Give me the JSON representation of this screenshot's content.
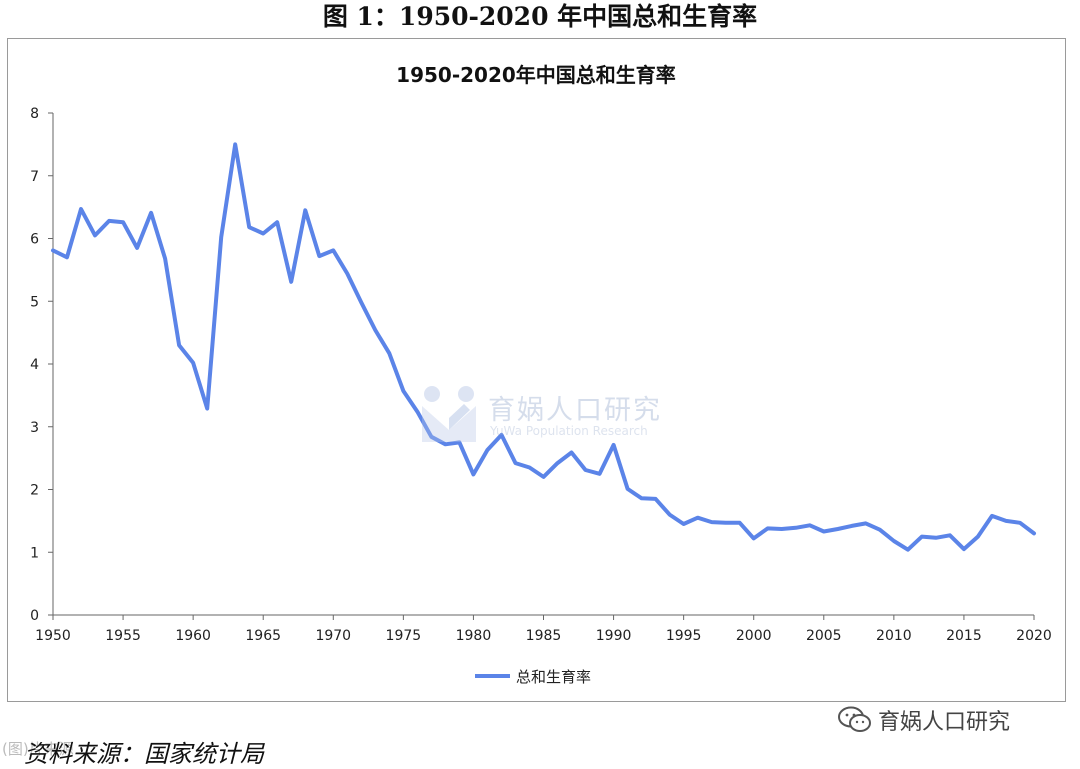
{
  "figure": {
    "caption": "图 1：1950-2020 年中国总和生育率"
  },
  "source_text": "资料来源：国家统计局",
  "source_watermark": "(图)片来源",
  "wechat_account": {
    "icon": "wechat-icon",
    "label": "育娲人口研究"
  },
  "watermark": {
    "logo": "yuwa-logo-icon",
    "title": "育娲人口研究",
    "subtitle": "YuWa Population Research"
  },
  "chart_data": {
    "type": "line",
    "title": "1950-2020年中国总和生育率",
    "xlabel": "",
    "ylabel": "",
    "x": [
      1950,
      1951,
      1952,
      1953,
      1954,
      1955,
      1956,
      1957,
      1958,
      1959,
      1960,
      1961,
      1962,
      1963,
      1964,
      1965,
      1966,
      1967,
      1968,
      1969,
      1970,
      1971,
      1972,
      1973,
      1974,
      1975,
      1976,
      1977,
      1978,
      1979,
      1980,
      1981,
      1982,
      1983,
      1984,
      1985,
      1986,
      1987,
      1988,
      1989,
      1990,
      1991,
      1992,
      1993,
      1994,
      1995,
      1996,
      1997,
      1998,
      1999,
      2000,
      2001,
      2002,
      2003,
      2004,
      2005,
      2006,
      2007,
      2008,
      2009,
      2010,
      2011,
      2012,
      2013,
      2014,
      2015,
      2016,
      2017,
      2018,
      2019,
      2020
    ],
    "series": [
      {
        "name": "总和生育率",
        "color": "#5b84e8",
        "values": [
          5.81,
          5.7,
          6.47,
          6.05,
          6.28,
          6.26,
          5.85,
          6.41,
          5.68,
          4.3,
          4.02,
          3.29,
          6.02,
          7.5,
          6.18,
          6.08,
          6.26,
          5.31,
          6.45,
          5.72,
          5.81,
          5.44,
          4.98,
          4.54,
          4.17,
          3.57,
          3.24,
          2.84,
          2.72,
          2.75,
          2.24,
          2.63,
          2.87,
          2.42,
          2.35,
          2.2,
          2.42,
          2.59,
          2.31,
          2.25,
          2.71,
          2.01,
          1.86,
          1.85,
          1.6,
          1.45,
          1.55,
          1.48,
          1.47,
          1.47,
          1.22,
          1.38,
          1.37,
          1.39,
          1.43,
          1.33,
          1.37,
          1.42,
          1.46,
          1.36,
          1.18,
          1.04,
          1.25,
          1.23,
          1.27,
          1.05,
          1.25,
          1.58,
          1.5,
          1.47,
          1.3
        ]
      }
    ],
    "xlim": [
      1950,
      2020
    ],
    "ylim": [
      0,
      8
    ],
    "x_ticks": [
      1950,
      1955,
      1960,
      1965,
      1970,
      1975,
      1980,
      1985,
      1990,
      1995,
      2000,
      2005,
      2010,
      2015,
      2020
    ],
    "y_ticks": [
      0,
      1,
      2,
      3,
      4,
      5,
      6,
      7,
      8
    ],
    "grid": false,
    "legend_position": "bottom-center"
  }
}
